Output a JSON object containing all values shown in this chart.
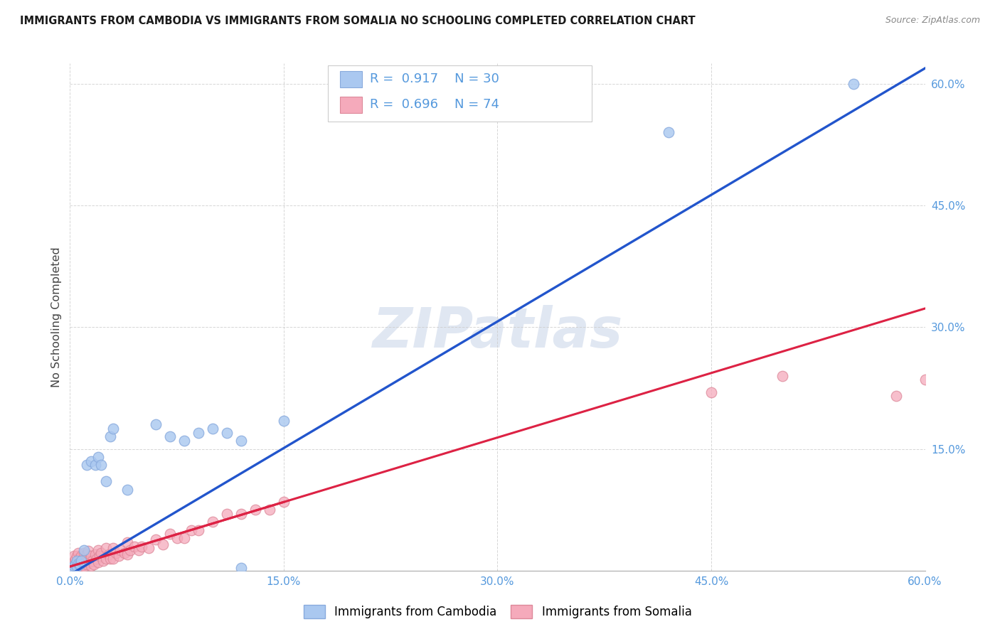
{
  "title": "IMMIGRANTS FROM CAMBODIA VS IMMIGRANTS FROM SOMALIA NO SCHOOLING COMPLETED CORRELATION CHART",
  "source": "Source: ZipAtlas.com",
  "ylabel": "No Schooling Completed",
  "xlim": [
    0.0,
    0.6
  ],
  "ylim": [
    0.0,
    0.625
  ],
  "xticks": [
    0.0,
    0.15,
    0.3,
    0.45,
    0.6
  ],
  "yticks": [
    0.0,
    0.15,
    0.3,
    0.45,
    0.6
  ],
  "xtick_labels": [
    "0.0%",
    "15.0%",
    "30.0%",
    "45.0%",
    "60.0%"
  ],
  "ytick_labels": [
    "",
    "15.0%",
    "30.0%",
    "45.0%",
    "60.0%"
  ],
  "cambodia_fill": "#aac8f0",
  "cambodia_edge": "#88aadd",
  "somalia_fill": "#f5aabb",
  "somalia_edge": "#dd8899",
  "line_cambodia": "#2255cc",
  "line_somalia": "#dd2244",
  "line_somalia_ext": "#ddbbcc",
  "R_cambodia": "0.917",
  "N_cambodia": "30",
  "R_somalia": "0.696",
  "N_somalia": "74",
  "label_cambodia": "Immigrants from Cambodia",
  "label_somalia": "Immigrants from Somalia",
  "watermark": "ZIPatlas",
  "bg": "#ffffff",
  "grid_color": "#cccccc",
  "title_color": "#1a1a1a",
  "tick_color": "#5599dd",
  "ylabel_color": "#444444",
  "source_color": "#888888",
  "legend_text_color": "#5599dd",
  "cam_slope": 1.04,
  "cam_intercept": -0.005,
  "som_slope": 0.53,
  "som_intercept": 0.005,
  "cambodia_x": [
    0.001,
    0.002,
    0.003,
    0.004,
    0.005,
    0.005,
    0.006,
    0.007,
    0.008,
    0.01,
    0.012,
    0.015,
    0.018,
    0.02,
    0.022,
    0.025,
    0.028,
    0.03,
    0.04,
    0.06,
    0.07,
    0.08,
    0.09,
    0.1,
    0.11,
    0.12,
    0.12,
    0.15,
    0.42,
    0.55
  ],
  "cambodia_y": [
    0.002,
    0.004,
    0.006,
    0.008,
    0.005,
    0.012,
    0.009,
    0.008,
    0.012,
    0.025,
    0.13,
    0.135,
    0.13,
    0.14,
    0.13,
    0.11,
    0.165,
    0.175,
    0.1,
    0.18,
    0.165,
    0.16,
    0.17,
    0.175,
    0.17,
    0.003,
    0.16,
    0.185,
    0.54,
    0.6
  ],
  "somalia_x": [
    0.001,
    0.001,
    0.002,
    0.002,
    0.003,
    0.003,
    0.003,
    0.004,
    0.004,
    0.005,
    0.005,
    0.005,
    0.006,
    0.006,
    0.007,
    0.007,
    0.008,
    0.008,
    0.009,
    0.009,
    0.01,
    0.01,
    0.01,
    0.011,
    0.012,
    0.012,
    0.013,
    0.013,
    0.014,
    0.015,
    0.015,
    0.016,
    0.017,
    0.018,
    0.019,
    0.02,
    0.02,
    0.021,
    0.022,
    0.023,
    0.025,
    0.025,
    0.027,
    0.028,
    0.03,
    0.03,
    0.032,
    0.034,
    0.035,
    0.038,
    0.04,
    0.04,
    0.042,
    0.045,
    0.048,
    0.05,
    0.055,
    0.06,
    0.065,
    0.07,
    0.075,
    0.08,
    0.085,
    0.09,
    0.1,
    0.11,
    0.12,
    0.13,
    0.14,
    0.15,
    0.45,
    0.5,
    0.58,
    0.6
  ],
  "somalia_y": [
    0.002,
    0.007,
    0.004,
    0.009,
    0.003,
    0.008,
    0.018,
    0.005,
    0.014,
    0.003,
    0.01,
    0.018,
    0.006,
    0.022,
    0.007,
    0.016,
    0.005,
    0.018,
    0.007,
    0.014,
    0.005,
    0.012,
    0.022,
    0.01,
    0.008,
    0.02,
    0.012,
    0.024,
    0.01,
    0.006,
    0.018,
    0.012,
    0.008,
    0.02,
    0.015,
    0.01,
    0.025,
    0.018,
    0.022,
    0.012,
    0.015,
    0.028,
    0.02,
    0.015,
    0.015,
    0.028,
    0.022,
    0.018,
    0.025,
    0.022,
    0.02,
    0.035,
    0.025,
    0.03,
    0.025,
    0.03,
    0.028,
    0.038,
    0.032,
    0.045,
    0.04,
    0.04,
    0.05,
    0.05,
    0.06,
    0.07,
    0.07,
    0.075,
    0.075,
    0.085,
    0.22,
    0.24,
    0.215,
    0.235
  ]
}
